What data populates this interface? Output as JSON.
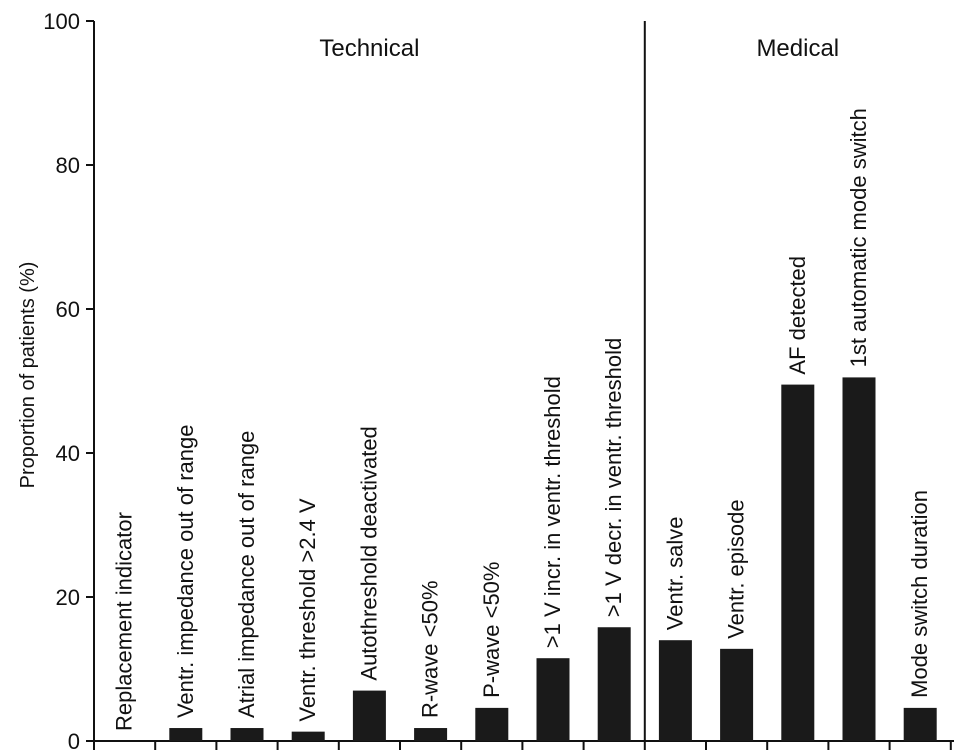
{
  "chart_data": {
    "type": "bar",
    "title": "",
    "xlabel": "",
    "ylabel": "Proportion of patients (%)",
    "ylim": [
      0,
      100
    ],
    "yticks": [
      0,
      20,
      40,
      60,
      80,
      100
    ],
    "groups": [
      {
        "name": "Technical",
        "start": 0,
        "end": 9
      },
      {
        "name": "Medical",
        "start": 9,
        "end": 14
      }
    ],
    "categories": [
      "Replacement indicator",
      "Ventr. impedance out of range",
      "Atrial impedance out of range",
      "Ventr. threshold >2.4 V",
      "Autothreshold deactivated",
      "R-wave <50%",
      "P-wave <50%",
      ">1 V incr. in ventr. threshold",
      ">1 V decr.  in ventr. threshold",
      "Ventr. salve",
      "Ventr. episode",
      "AF detected",
      "1st automatic mode switch",
      "Mode switch duration"
    ],
    "values": [
      0,
      1.8,
      1.8,
      1.3,
      7.0,
      1.8,
      4.6,
      11.5,
      15.8,
      14.0,
      12.8,
      49.5,
      50.5,
      4.6
    ],
    "grid": false,
    "bar_color": "#1a1a1a"
  }
}
